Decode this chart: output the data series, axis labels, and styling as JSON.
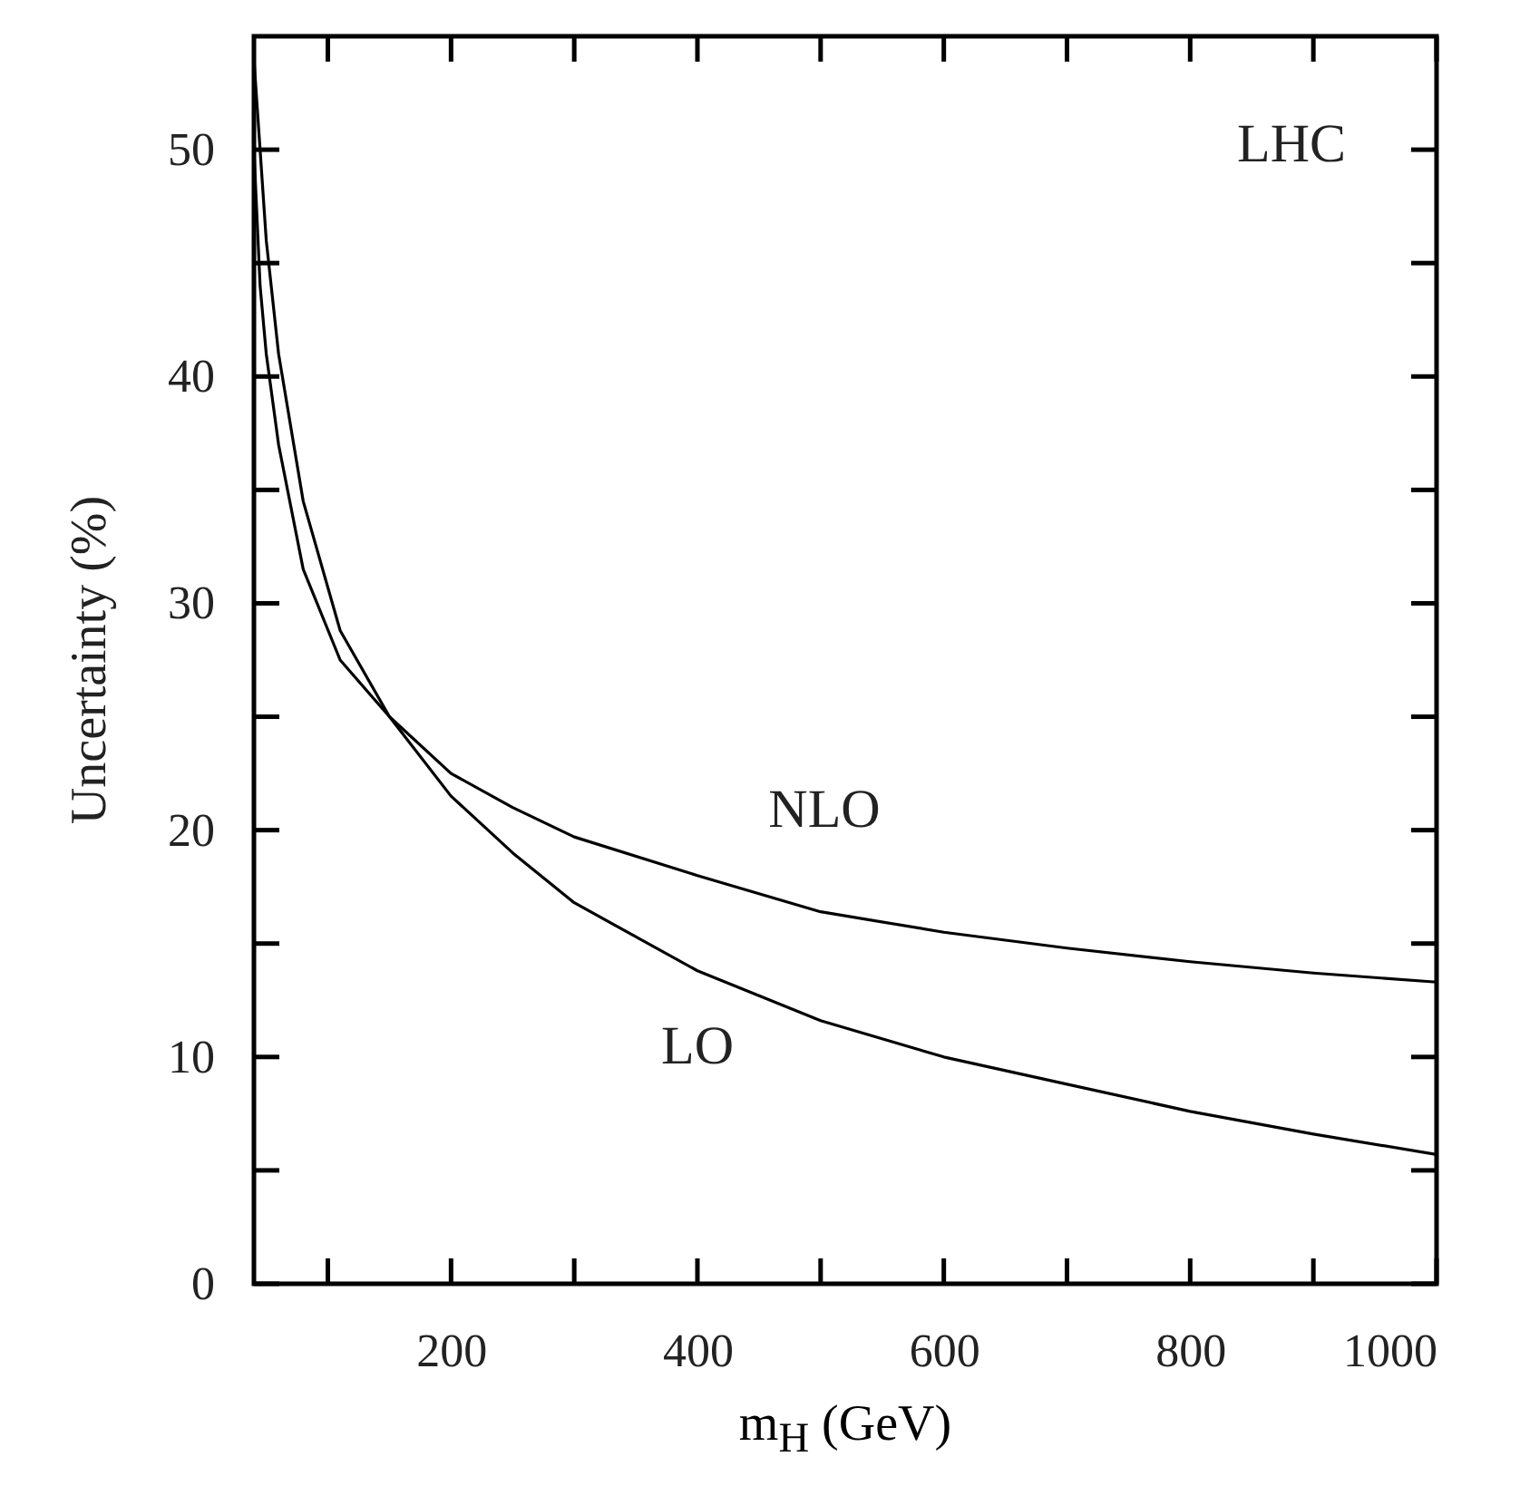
{
  "chart_data": {
    "type": "line",
    "xlabel": "m$_{H}$ (GeV)",
    "ylabel": "Uncertainty (%)",
    "annotations": [
      "LHC"
    ],
    "x": [
      40,
      45,
      50,
      60,
      80,
      110,
      150,
      200,
      250,
      300,
      400,
      500,
      600,
      700,
      800,
      900,
      1000
    ],
    "series": [
      {
        "name": "NLO",
        "color": "#000000",
        "values": [
          50,
          44,
          41,
          37,
          31.5,
          27.5,
          25,
          22.5,
          21,
          19.7,
          18,
          16.4,
          15.5,
          14.8,
          14.2,
          13.7,
          13.3
        ]
      },
      {
        "name": "LO",
        "color": "#000000",
        "values": [
          54,
          50,
          46,
          41,
          34.5,
          28.8,
          25,
          21.5,
          19,
          16.8,
          13.8,
          11.6,
          10,
          8.8,
          7.6,
          6.6,
          5.7
        ]
      }
    ],
    "xlim": [
      40,
      1000
    ],
    "ylim": [
      0,
      55
    ],
    "xticks": [
      {
        "value": 100,
        "label": null
      },
      200,
      {
        "value": 300,
        "label": null
      },
      400,
      {
        "value": 500,
        "label": null
      },
      600,
      {
        "value": 700,
        "label": null
      },
      800,
      {
        "value": 900,
        "label": null
      },
      1000
    ],
    "yticks": [
      0,
      {
        "value": 5,
        "label": null
      },
      10,
      {
        "value": 15,
        "label": null
      },
      20,
      {
        "value": 25,
        "label": null
      },
      30,
      {
        "value": 35,
        "label": null
      },
      40,
      {
        "value": 45,
        "label": null
      },
      50
    ],
    "legend": false,
    "marker": "none",
    "line_style": "solid"
  }
}
